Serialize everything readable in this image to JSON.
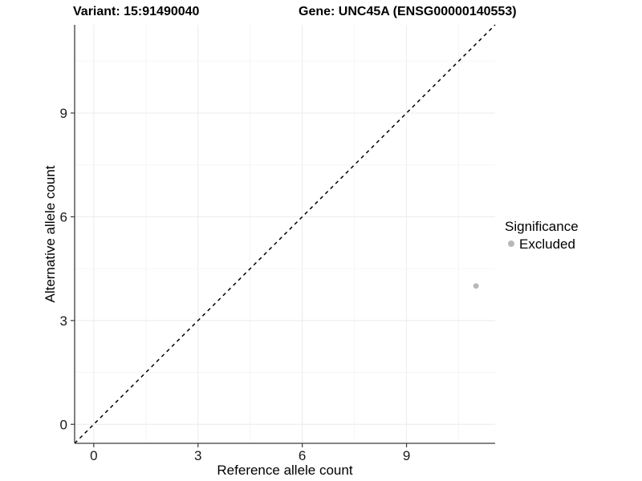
{
  "chart_data": {
    "type": "scatter",
    "title_left": "Variant: 15:91490040",
    "title_right": "Gene: UNC45A (ENSG00000140553)",
    "xlabel": "Reference allele count",
    "ylabel": "Alternative allele count",
    "xlim": [
      -0.55,
      11.55
    ],
    "ylim": [
      -0.55,
      11.55
    ],
    "x_ticks": [
      0,
      3,
      6,
      9
    ],
    "y_ticks": [
      0,
      3,
      6,
      9
    ],
    "x_minor_ticks": [
      1.5,
      4.5,
      7.5,
      10.5
    ],
    "y_minor_ticks": [
      1.5,
      4.5,
      7.5,
      10.5
    ],
    "grid": "major+minor on white panel",
    "legend_position": "right",
    "series": [
      {
        "name": "Excluded",
        "color": "#b8b8b8",
        "points": [
          {
            "x": 11,
            "y": 4
          }
        ]
      }
    ],
    "reference_line": {
      "kind": "identity y=x",
      "style": "dashed",
      "color": "#000000"
    }
  },
  "legend": {
    "title": "Significance",
    "items": [
      {
        "label": "Excluded",
        "color": "#b8b8b8"
      }
    ]
  },
  "colors": {
    "background": "#ffffff",
    "axis_line": "#3c3c3c",
    "tick_text": "#1a1a1a",
    "grid_major": "#ebebeb",
    "grid_minor": "#f5f5f5"
  }
}
